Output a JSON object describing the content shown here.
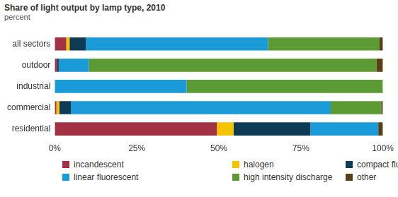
{
  "chart_data": {
    "type": "bar",
    "orientation": "horizontal",
    "stacked": true,
    "title": "Share of light output by lamp type, 2010",
    "subtitle": "percent",
    "categories": [
      "all sectors",
      "outdoor",
      "industrial",
      "commercial",
      "residential"
    ],
    "series": [
      {
        "name": "incandescent",
        "color": "#a33144",
        "values": [
          3.5,
          0.7,
          0,
          0.5,
          49.4
        ]
      },
      {
        "name": "halogen",
        "color": "#f5c400",
        "values": [
          1.0,
          0,
          0,
          0.9,
          5.1
        ]
      },
      {
        "name": "compact fluorescent",
        "color": "#0d3a55",
        "values": [
          5.0,
          0.5,
          0,
          3.5,
          23.4
        ]
      },
      {
        "name": "linear fluorescent",
        "color": "#1a9ad6",
        "values": [
          55.5,
          9.2,
          40.2,
          79.2,
          20.7
        ]
      },
      {
        "name": "high intensity discharge",
        "color": "#5c9a34",
        "values": [
          34.0,
          87.6,
          59.8,
          15.4,
          0
        ]
      },
      {
        "name": "other",
        "color": "#5a3e17",
        "values": [
          1.0,
          2.0,
          0,
          0.5,
          1.4
        ]
      }
    ],
    "xlim": [
      0,
      100
    ],
    "xticks": [
      {
        "value": 0,
        "label": "0%"
      },
      {
        "value": 25,
        "label": "25%"
      },
      {
        "value": 50,
        "label": "50%"
      },
      {
        "value": 75,
        "label": "75%"
      },
      {
        "value": 100,
        "label": "100%"
      }
    ],
    "grid": false,
    "legend": "bottom"
  }
}
